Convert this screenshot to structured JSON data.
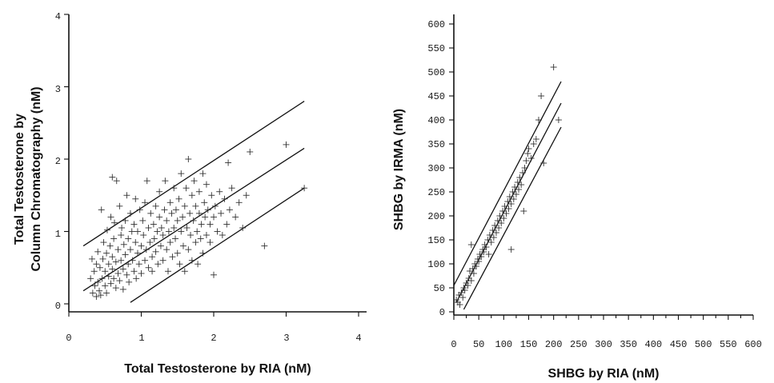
{
  "chart_data": [
    {
      "type": "scatter",
      "xlabel": "Total Testosterone by RIA (nM)",
      "ylabel_line1": "Total Testosterone by",
      "ylabel_line2": "Column Chromatography (nM)",
      "xlim": [
        0,
        4
      ],
      "ylim": [
        0,
        4
      ],
      "xticks": [
        "0",
        "1",
        "2",
        "3",
        "4"
      ],
      "yticks": [
        "0",
        "1",
        "2",
        "3",
        "4"
      ],
      "grid": false,
      "lines": [
        {
          "name": "upper",
          "x": [
            0.2,
            3.25
          ],
          "y": [
            0.8,
            2.8
          ]
        },
        {
          "name": "regression",
          "x": [
            0.2,
            3.25
          ],
          "y": [
            0.18,
            2.15
          ]
        },
        {
          "name": "lower",
          "x": [
            0.85,
            3.25
          ],
          "y": [
            0.02,
            1.6
          ]
        }
      ],
      "points": [
        [
          0.3,
          0.35
        ],
        [
          0.32,
          0.62
        ],
        [
          0.33,
          0.15
        ],
        [
          0.35,
          0.45
        ],
        [
          0.36,
          0.25
        ],
        [
          0.38,
          0.1
        ],
        [
          0.38,
          0.55
        ],
        [
          0.4,
          0.3
        ],
        [
          0.4,
          0.72
        ],
        [
          0.42,
          0.18
        ],
        [
          0.43,
          0.5
        ],
        [
          0.44,
          0.12
        ],
        [
          0.45,
          1.3
        ],
        [
          0.46,
          0.35
        ],
        [
          0.47,
          0.62
        ],
        [
          0.48,
          0.85
        ],
        [
          0.5,
          0.25
        ],
        [
          0.5,
          0.45
        ],
        [
          0.52,
          0.15
        ],
        [
          0.52,
          0.7
        ],
        [
          0.53,
          1.02
        ],
        [
          0.55,
          0.38
        ],
        [
          0.55,
          0.55
        ],
        [
          0.57,
          0.8
        ],
        [
          0.58,
          0.28
        ],
        [
          0.58,
          1.2
        ],
        [
          0.6,
          0.48
        ],
        [
          0.6,
          0.65
        ],
        [
          0.6,
          1.75
        ],
        [
          0.62,
          0.35
        ],
        [
          0.62,
          0.9
        ],
        [
          0.63,
          1.12
        ],
        [
          0.65,
          0.22
        ],
        [
          0.65,
          0.58
        ],
        [
          0.66,
          1.7
        ],
        [
          0.68,
          0.42
        ],
        [
          0.68,
          0.75
        ],
        [
          0.7,
          1.35
        ],
        [
          0.7,
          0.32
        ],
        [
          0.72,
          0.95
        ],
        [
          0.72,
          0.6
        ],
        [
          0.73,
          1.05
        ],
        [
          0.75,
          0.48
        ],
        [
          0.75,
          0.2
        ],
        [
          0.76,
          0.82
        ],
        [
          0.78,
          1.15
        ],
        [
          0.78,
          0.68
        ],
        [
          0.8,
          0.4
        ],
        [
          0.8,
          1.5
        ],
        [
          0.82,
          0.9
        ],
        [
          0.82,
          0.55
        ],
        [
          0.83,
          0.3
        ],
        [
          0.85,
          0.75
        ],
        [
          0.85,
          1.25
        ],
        [
          0.87,
          1.0
        ],
        [
          0.88,
          0.6
        ],
        [
          0.9,
          0.45
        ],
        [
          0.9,
          1.1
        ],
        [
          0.92,
          0.85
        ],
        [
          0.92,
          1.45
        ],
        [
          0.93,
          0.35
        ],
        [
          0.95,
          0.7
        ],
        [
          0.95,
          1.0
        ],
        [
          0.97,
          0.55
        ],
        [
          0.98,
          1.3
        ],
        [
          1.0,
          0.8
        ],
        [
          1.0,
          0.42
        ],
        [
          1.02,
          1.15
        ],
        [
          1.03,
          0.95
        ],
        [
          1.05,
          0.6
        ],
        [
          1.05,
          1.4
        ],
        [
          1.07,
          0.75
        ],
        [
          1.08,
          1.7
        ],
        [
          1.1,
          0.5
        ],
        [
          1.1,
          1.05
        ],
        [
          1.12,
          0.85
        ],
        [
          1.13,
          1.25
        ],
        [
          1.15,
          0.65
        ],
        [
          1.15,
          0.45
        ],
        [
          1.17,
          1.1
        ],
        [
          1.18,
          0.9
        ],
        [
          1.2,
          1.35
        ],
        [
          1.2,
          0.72
        ],
        [
          1.22,
          1.0
        ],
        [
          1.23,
          0.55
        ],
        [
          1.25,
          1.2
        ],
        [
          1.25,
          1.55
        ],
        [
          1.27,
          0.8
        ],
        [
          1.28,
          1.05
        ],
        [
          1.3,
          0.95
        ],
        [
          1.3,
          0.6
        ],
        [
          1.32,
          1.3
        ],
        [
          1.33,
          1.7
        ],
        [
          1.35,
          0.75
        ],
        [
          1.35,
          1.15
        ],
        [
          1.37,
          0.45
        ],
        [
          1.38,
          1.0
        ],
        [
          1.4,
          1.4
        ],
        [
          1.4,
          0.85
        ],
        [
          1.42,
          1.25
        ],
        [
          1.43,
          0.65
        ],
        [
          1.45,
          1.05
        ],
        [
          1.45,
          1.6
        ],
        [
          1.47,
          0.9
        ],
        [
          1.48,
          1.3
        ],
        [
          1.5,
          0.7
        ],
        [
          1.5,
          1.15
        ],
        [
          1.52,
          1.45
        ],
        [
          1.53,
          0.55
        ],
        [
          1.55,
          1.0
        ],
        [
          1.55,
          1.8
        ],
        [
          1.57,
          1.2
        ],
        [
          1.58,
          0.8
        ],
        [
          1.6,
          1.35
        ],
        [
          1.6,
          0.45
        ],
        [
          1.62,
          1.6
        ],
        [
          1.63,
          1.05
        ],
        [
          1.65,
          0.75
        ],
        [
          1.65,
          2.0
        ],
        [
          1.67,
          1.25
        ],
        [
          1.68,
          0.95
        ],
        [
          1.7,
          1.5
        ],
        [
          1.7,
          0.6
        ],
        [
          1.72,
          1.15
        ],
        [
          1.73,
          1.7
        ],
        [
          1.75,
          0.85
        ],
        [
          1.75,
          1.35
        ],
        [
          1.77,
          1.0
        ],
        [
          1.78,
          0.55
        ],
        [
          1.8,
          1.25
        ],
        [
          1.8,
          1.55
        ],
        [
          1.82,
          0.9
        ],
        [
          1.83,
          1.1
        ],
        [
          1.85,
          1.8
        ],
        [
          1.85,
          0.7
        ],
        [
          1.87,
          1.4
        ],
        [
          1.88,
          1.2
        ],
        [
          1.9,
          0.95
        ],
        [
          1.9,
          1.65
        ],
        [
          1.92,
          1.3
        ],
        [
          1.95,
          0.85
        ],
        [
          1.95,
          1.1
        ],
        [
          1.97,
          1.5
        ],
        [
          2.0,
          1.2
        ],
        [
          2.0,
          0.4
        ],
        [
          2.02,
          1.35
        ],
        [
          2.05,
          1.0
        ],
        [
          2.08,
          1.55
        ],
        [
          2.1,
          1.25
        ],
        [
          2.12,
          0.95
        ],
        [
          2.15,
          1.45
        ],
        [
          2.18,
          1.1
        ],
        [
          2.2,
          1.95
        ],
        [
          2.22,
          1.3
        ],
        [
          2.25,
          1.6
        ],
        [
          2.3,
          1.2
        ],
        [
          2.35,
          1.4
        ],
        [
          2.4,
          1.05
        ],
        [
          2.45,
          1.5
        ],
        [
          2.5,
          2.1
        ],
        [
          2.7,
          0.8
        ],
        [
          3.0,
          2.2
        ],
        [
          3.25,
          1.6
        ]
      ]
    },
    {
      "type": "scatter",
      "xlabel": "SHBG by RIA (nM)",
      "ylabel": "SHBG by IRMA (nM)",
      "xlim": [
        0,
        600
      ],
      "ylim": [
        0,
        600
      ],
      "xticks": [
        "0",
        "50",
        "100",
        "150",
        "200",
        "250",
        "300",
        "350",
        "400",
        "450",
        "500",
        "550",
        "600"
      ],
      "yticks": [
        "0",
        "50",
        "100",
        "150",
        "200",
        "250",
        "300",
        "350",
        "400",
        "450",
        "500",
        "550",
        "600"
      ],
      "grid": false,
      "lines": [
        {
          "name": "upper",
          "x": [
            0,
            215
          ],
          "y": [
            55,
            480
          ]
        },
        {
          "name": "regression",
          "x": [
            5,
            215
          ],
          "y": [
            20,
            435
          ]
        },
        {
          "name": "lower",
          "x": [
            20,
            215
          ],
          "y": [
            5,
            385
          ]
        }
      ],
      "points": [
        [
          5,
          25
        ],
        [
          8,
          20
        ],
        [
          10,
          35
        ],
        [
          12,
          15
        ],
        [
          15,
          40
        ],
        [
          18,
          30
        ],
        [
          20,
          50
        ],
        [
          22,
          45
        ],
        [
          25,
          60
        ],
        [
          28,
          55
        ],
        [
          30,
          70
        ],
        [
          32,
          85
        ],
        [
          35,
          65
        ],
        [
          35,
          140
        ],
        [
          38,
          90
        ],
        [
          40,
          80
        ],
        [
          42,
          100
        ],
        [
          45,
          95
        ],
        [
          48,
          110
        ],
        [
          50,
          105
        ],
        [
          52,
          120
        ],
        [
          55,
          115
        ],
        [
          58,
          130
        ],
        [
          60,
          125
        ],
        [
          62,
          140
        ],
        [
          65,
          135
        ],
        [
          68,
          150
        ],
        [
          70,
          120
        ],
        [
          72,
          160
        ],
        [
          75,
          145
        ],
        [
          78,
          170
        ],
        [
          80,
          155
        ],
        [
          82,
          180
        ],
        [
          85,
          165
        ],
        [
          88,
          190
        ],
        [
          90,
          175
        ],
        [
          92,
          200
        ],
        [
          95,
          185
        ],
        [
          98,
          210
        ],
        [
          100,
          195
        ],
        [
          102,
          220
        ],
        [
          105,
          205
        ],
        [
          108,
          230
        ],
        [
          110,
          215
        ],
        [
          112,
          240
        ],
        [
          115,
          225
        ],
        [
          115,
          130
        ],
        [
          118,
          250
        ],
        [
          120,
          235
        ],
        [
          122,
          260
        ],
        [
          125,
          245
        ],
        [
          128,
          270
        ],
        [
          130,
          255
        ],
        [
          132,
          280
        ],
        [
          135,
          265
        ],
        [
          138,
          290
        ],
        [
          140,
          210
        ],
        [
          142,
          300
        ],
        [
          145,
          315
        ],
        [
          148,
          330
        ],
        [
          150,
          340
        ],
        [
          155,
          320
        ],
        [
          160,
          350
        ],
        [
          165,
          360
        ],
        [
          170,
          400
        ],
        [
          175,
          450
        ],
        [
          180,
          310
        ],
        [
          200,
          510
        ],
        [
          210,
          400
        ]
      ]
    }
  ]
}
